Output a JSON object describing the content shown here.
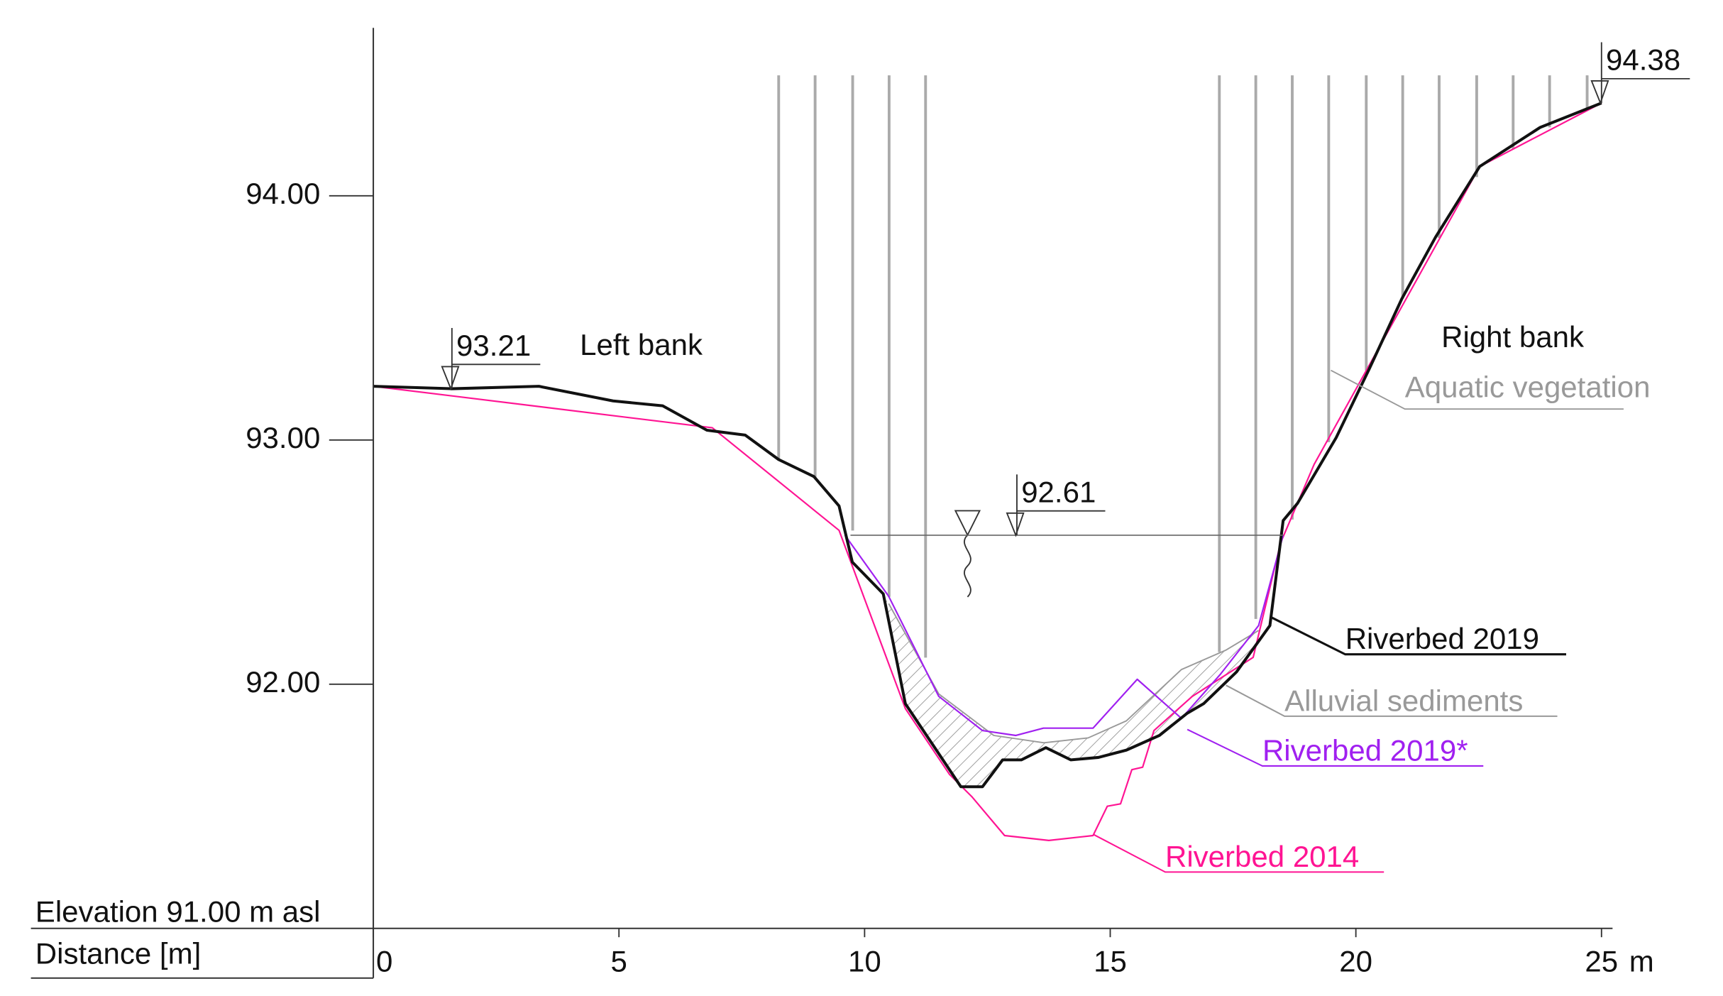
{
  "chart_data": {
    "type": "line",
    "y_origin_label": "Elevation 91.00 m asl",
    "x_label": "Distance [m]",
    "x_unit": "m",
    "xlim": [
      0,
      25.2
    ],
    "ylim": [
      91,
      94.7
    ],
    "xticks": [
      0,
      5,
      10,
      15,
      20,
      25
    ],
    "yticks": [
      {
        "value": 92,
        "label": "92.00"
      },
      {
        "value": 93,
        "label": "93.00"
      },
      {
        "value": 94,
        "label": "94.00"
      }
    ],
    "annotations": [
      "Left bank",
      "Right bank",
      "Aquatic vegetation"
    ],
    "level_marks": [
      {
        "x": 1.6,
        "y": 93.21
      },
      {
        "x": 13.1,
        "y": 92.61
      },
      {
        "x": 25,
        "y": 94.38
      }
    ],
    "series": [
      {
        "name": "Riverbed 2019",
        "color": "#111111",
        "x": [
          0,
          1.6,
          3.37,
          4.88,
          5.89,
          6.79,
          7.57,
          8.25,
          8.97,
          9.48,
          9.75,
          10.38,
          10.83,
          11.96,
          12.4,
          12.81,
          13.19,
          13.69,
          14.2,
          14.76,
          15.33,
          16.0,
          16.56,
          16.9,
          17.57,
          18.25,
          18.52,
          18.81,
          19.6,
          20.27,
          20.94,
          21.62,
          22.52,
          23.75,
          25.0
        ],
        "values": [
          93.22,
          93.21,
          93.22,
          93.16,
          93.14,
          93.04,
          93.02,
          92.92,
          92.85,
          92.73,
          92.5,
          92.37,
          91.92,
          91.58,
          91.58,
          91.69,
          91.69,
          91.74,
          91.69,
          91.7,
          91.73,
          91.79,
          91.88,
          91.92,
          92.05,
          92.24,
          92.67,
          92.74,
          93.01,
          93.29,
          93.58,
          93.83,
          94.12,
          94.28,
          94.38
        ]
      },
      {
        "name": "Alluvial sediments",
        "color": "#999999",
        "x": [
          10.49,
          11.51,
          12.63,
          13.65,
          14.55,
          15.33,
          16.45,
          17.36,
          18.02
        ],
        "values": [
          92.33,
          91.96,
          91.79,
          91.76,
          91.78,
          91.85,
          92.06,
          92.14,
          92.22
        ]
      },
      {
        "name": "Riverbed 2019*",
        "color": "#a020f0",
        "x": [
          9.6,
          10.49,
          11.51,
          12.4,
          13.08,
          13.64,
          14.65,
          15.55,
          16.45,
          17.24,
          18.02,
          18.52
        ],
        "values": [
          92.61,
          92.36,
          91.95,
          91.81,
          91.79,
          91.82,
          91.82,
          92.02,
          91.86,
          92.04,
          92.24,
          92.61
        ]
      },
      {
        "name": "Riverbed 2014",
        "color": "#ff1493",
        "x": [
          0,
          6.9,
          9.48,
          10.83,
          11.73,
          12.18,
          12.85,
          13.75,
          14.65,
          14.94,
          15.21,
          15.44,
          15.66,
          15.89,
          16.67,
          17.91,
          18.47,
          19.15,
          22.52,
          25.0
        ],
        "values": [
          93.22,
          93.05,
          92.63,
          91.9,
          91.63,
          91.54,
          91.38,
          91.36,
          91.38,
          91.5,
          91.51,
          91.65,
          91.66,
          91.81,
          91.95,
          92.11,
          92.58,
          92.9,
          94.12,
          94.38
        ]
      }
    ]
  }
}
